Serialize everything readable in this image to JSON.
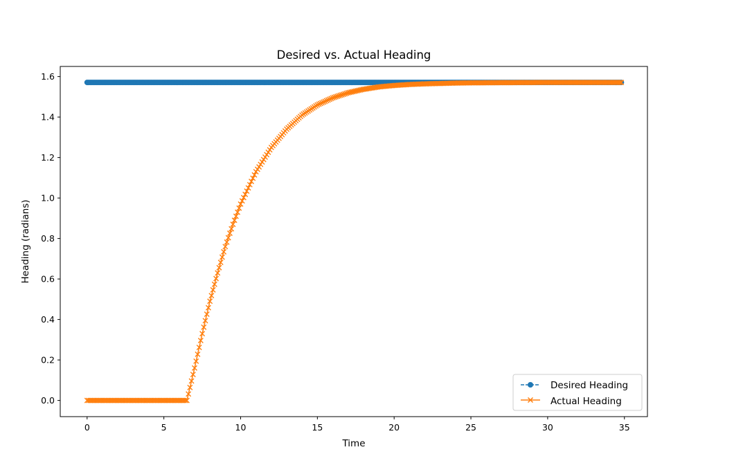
{
  "chart_data": {
    "type": "line",
    "title": "Desired vs. Actual Heading",
    "xlabel": "Time",
    "ylabel": "Heading (radians)",
    "xlim": [
      -1.75,
      36.5
    ],
    "ylim": [
      -0.08,
      1.65
    ],
    "xticks": [
      0,
      5,
      10,
      15,
      20,
      25,
      30,
      35
    ],
    "yticks": [
      0.0,
      0.2,
      0.4,
      0.6,
      0.8,
      1.0,
      1.2,
      1.4,
      1.6
    ],
    "xtick_labels": [
      "0",
      "5",
      "10",
      "15",
      "20",
      "25",
      "30",
      "35"
    ],
    "ytick_labels": [
      "0.0",
      "0.2",
      "0.4",
      "0.6",
      "0.8",
      "1.0",
      "1.2",
      "1.4",
      "1.6"
    ],
    "grid": false,
    "legend_position": "lower-right",
    "series": [
      {
        "name": "Desired Heading",
        "color": "#1f77b4",
        "marker": "circle",
        "linestyle": "dashed",
        "x": [
          0,
          34.8
        ],
        "y": [
          1.571,
          1.571
        ],
        "sample_step": 0.1
      },
      {
        "name": "Actual Heading",
        "color": "#ff7f0e",
        "marker": "x",
        "linestyle": "solid",
        "x": [
          0,
          6.5,
          7,
          7.5,
          8,
          8.5,
          9,
          9.5,
          10,
          11,
          12,
          13,
          14,
          15,
          16,
          17,
          18,
          19,
          20,
          21,
          22,
          23,
          24,
          25,
          27,
          30,
          34.8
        ],
        "y": [
          0,
          0,
          0.16,
          0.33,
          0.49,
          0.63,
          0.76,
          0.87,
          0.97,
          1.13,
          1.25,
          1.34,
          1.41,
          1.46,
          1.495,
          1.52,
          1.537,
          1.549,
          1.556,
          1.561,
          1.564,
          1.566,
          1.568,
          1.569,
          1.57,
          1.571,
          1.571
        ],
        "sample_step": 0.1
      }
    ]
  }
}
